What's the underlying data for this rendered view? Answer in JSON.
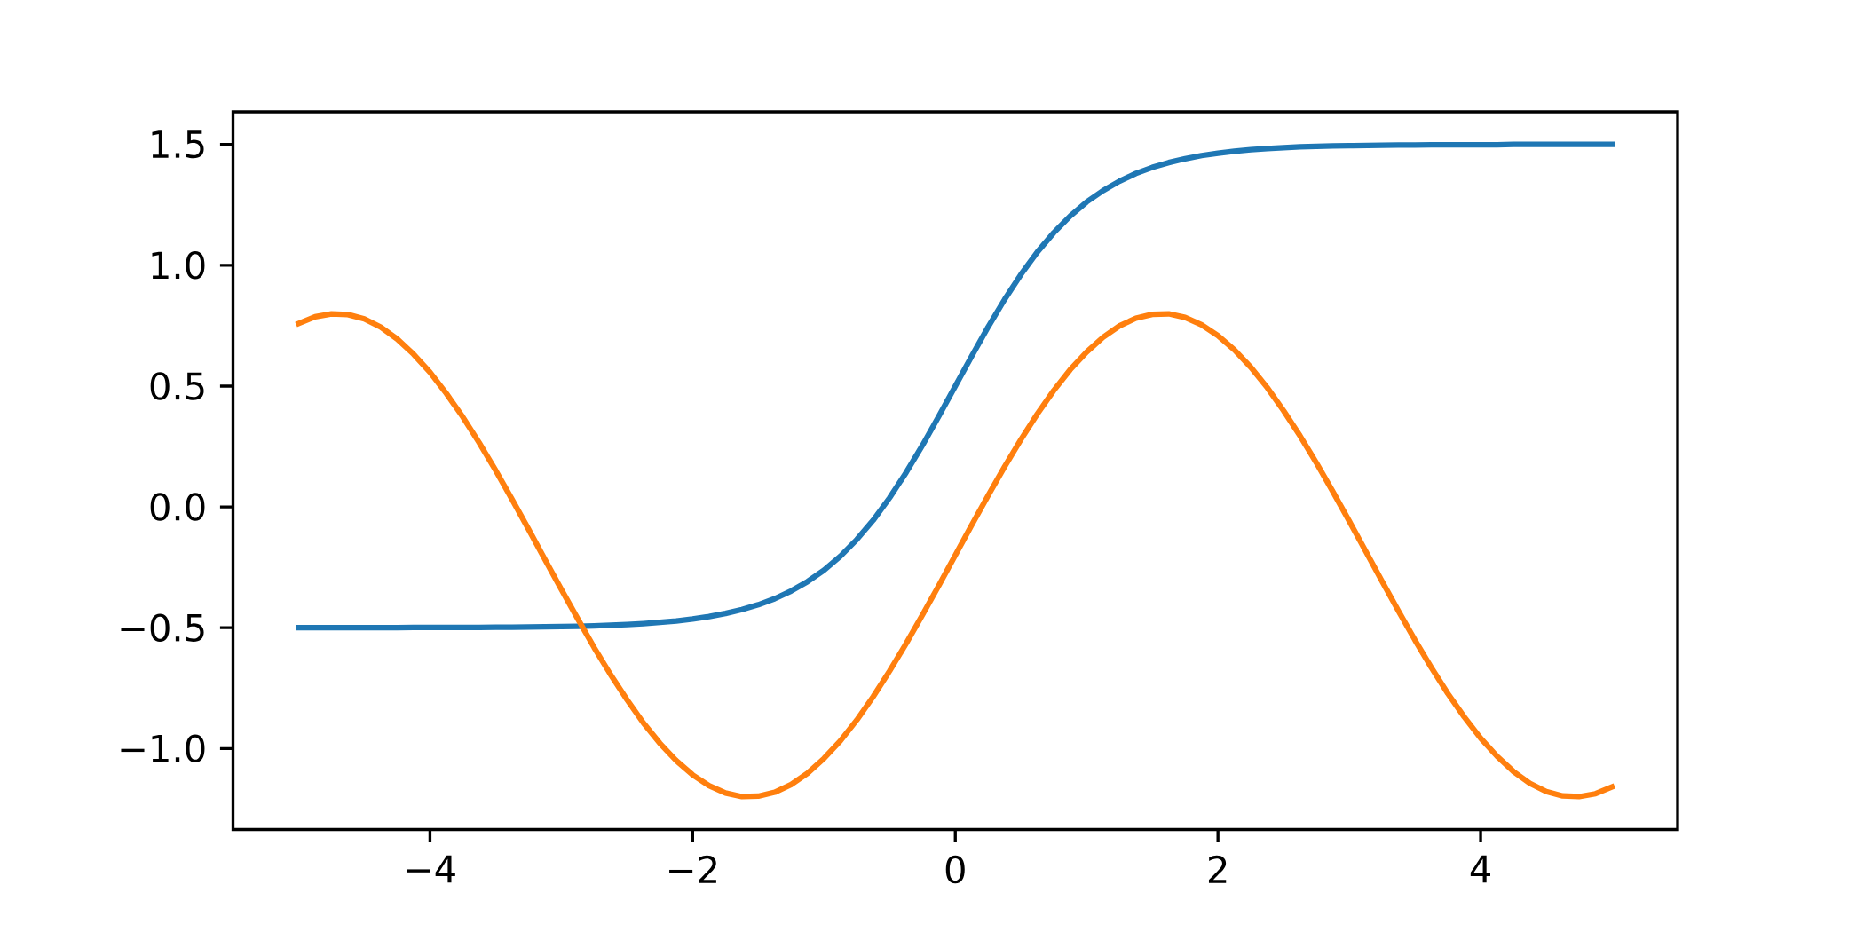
{
  "chart_data": {
    "type": "line",
    "x": [
      -5,
      -4.875,
      -4.75,
      -4.625,
      -4.5,
      -4.375,
      -4.25,
      -4.125,
      -4,
      -3.875,
      -3.75,
      -3.625,
      -3.5,
      -3.375,
      -3.25,
      -3.125,
      -3,
      -2.875,
      -2.75,
      -2.625,
      -2.5,
      -2.375,
      -2.25,
      -2.125,
      -2,
      -1.875,
      -1.75,
      -1.625,
      -1.5,
      -1.375,
      -1.25,
      -1.125,
      -1,
      -0.875,
      -0.75,
      -0.625,
      -0.5,
      -0.375,
      -0.25,
      -0.125,
      0,
      0.125,
      0.25,
      0.375,
      0.5,
      0.625,
      0.75,
      0.875,
      1,
      1.125,
      1.25,
      1.375,
      1.5,
      1.625,
      1.75,
      1.875,
      2,
      2.125,
      2.25,
      2.375,
      2.5,
      2.625,
      2.75,
      2.875,
      3,
      3.125,
      3.25,
      3.375,
      3.5,
      3.625,
      3.75,
      3.875,
      4,
      4.125,
      4.25,
      4.375,
      4.5,
      4.625,
      4.75,
      4.875,
      5
    ],
    "series": [
      {
        "color": "#1f77b4",
        "values": [
          -0.5,
          -0.5,
          -0.5,
          -0.5,
          -0.5,
          -0.5,
          -0.5,
          -0.499,
          -0.499,
          -0.499,
          -0.499,
          -0.499,
          -0.498,
          -0.498,
          -0.497,
          -0.496,
          -0.495,
          -0.494,
          -0.492,
          -0.49,
          -0.487,
          -0.483,
          -0.478,
          -0.472,
          -0.464,
          -0.454,
          -0.441,
          -0.425,
          -0.405,
          -0.38,
          -0.348,
          -0.309,
          -0.262,
          -0.204,
          -0.135,
          -0.055,
          0.038,
          0.142,
          0.255,
          0.376,
          0.5,
          0.624,
          0.745,
          0.858,
          0.962,
          1.055,
          1.135,
          1.204,
          1.262,
          1.309,
          1.348,
          1.38,
          1.405,
          1.425,
          1.441,
          1.454,
          1.464,
          1.472,
          1.478,
          1.483,
          1.487,
          1.49,
          1.492,
          1.494,
          1.495,
          1.496,
          1.497,
          1.498,
          1.498,
          1.499,
          1.499,
          1.499,
          1.499,
          1.499,
          1.5,
          1.5,
          1.5,
          1.5,
          1.5,
          1.5,
          1.5
        ]
      },
      {
        "color": "#ff7f0e",
        "values": [
          0.759,
          0.787,
          0.799,
          0.796,
          0.778,
          0.744,
          0.695,
          0.632,
          0.557,
          0.469,
          0.372,
          0.265,
          0.151,
          0.031,
          -0.092,
          -0.217,
          -0.341,
          -0.463,
          -0.582,
          -0.694,
          -0.798,
          -0.894,
          -0.978,
          -1.05,
          -1.109,
          -1.154,
          -1.184,
          -1.199,
          -1.197,
          -1.181,
          -1.149,
          -1.102,
          -1.041,
          -0.968,
          -0.882,
          -0.785,
          -0.679,
          -0.566,
          -0.447,
          -0.325,
          -0.2,
          -0.075,
          0.047,
          0.166,
          0.279,
          0.385,
          0.482,
          0.568,
          0.641,
          0.702,
          0.749,
          0.781,
          0.797,
          0.799,
          0.784,
          0.754,
          0.709,
          0.65,
          0.578,
          0.494,
          0.398,
          0.294,
          0.182,
          0.063,
          -0.059,
          -0.183,
          -0.308,
          -0.431,
          -0.551,
          -0.665,
          -0.772,
          -0.869,
          -0.957,
          -1.032,
          -1.095,
          -1.144,
          -1.178,
          -1.196,
          -1.199,
          -1.187,
          -1.159
        ]
      }
    ],
    "xlim": [
      -5.5,
      5.5
    ],
    "ylim": [
      -1.335,
      1.635
    ],
    "xticks": [
      {
        "value": -4,
        "label": "−4"
      },
      {
        "value": -2,
        "label": "−2"
      },
      0,
      2,
      4
    ],
    "yticks": [
      {
        "value": -1,
        "label": "−1.0"
      },
      {
        "value": -0.5,
        "label": "−0.5"
      },
      {
        "value": 0,
        "label": "0.0"
      },
      {
        "value": 0.5,
        "label": "0.5"
      },
      {
        "value": 1,
        "label": "1.0"
      },
      {
        "value": 1.5,
        "label": "1.5"
      }
    ],
    "line_style": "solid"
  }
}
